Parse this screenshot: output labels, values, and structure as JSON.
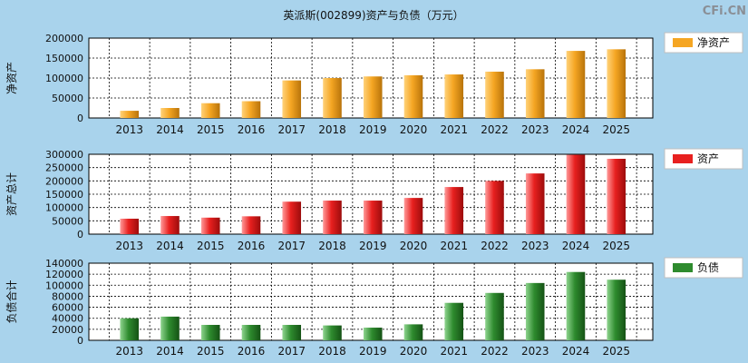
{
  "title": "英派斯(002899)资产与负债（万元）",
  "watermark": "CFi.CN",
  "chart_data": [
    {
      "type": "bar",
      "ylabel": "净资产",
      "legend": "净资产",
      "color": "#f5a623",
      "categories": [
        "2013",
        "2014",
        "2015",
        "2016",
        "2017",
        "2018",
        "2019",
        "2020",
        "2021",
        "2022",
        "2023",
        "2024",
        "2025"
      ],
      "values": [
        18000,
        25000,
        37000,
        42000,
        94000,
        100000,
        104000,
        107000,
        109000,
        116000,
        122000,
        168000,
        172000
      ],
      "ylim": [
        0,
        200000
      ],
      "yticks": [
        0,
        50000,
        100000,
        150000,
        200000
      ],
      "grid": true
    },
    {
      "type": "bar",
      "ylabel": "资产总计",
      "legend": "资产",
      "color": "#e8201f",
      "categories": [
        "2013",
        "2014",
        "2015",
        "2016",
        "2017",
        "2018",
        "2019",
        "2020",
        "2021",
        "2022",
        "2023",
        "2024",
        "2025"
      ],
      "values": [
        58000,
        68000,
        62000,
        67000,
        122000,
        126000,
        126000,
        136000,
        177000,
        200000,
        228000,
        298000,
        283000
      ],
      "ylim": [
        0,
        300000
      ],
      "yticks": [
        0,
        50000,
        100000,
        150000,
        200000,
        250000,
        300000
      ],
      "grid": true
    },
    {
      "type": "bar",
      "ylabel": "负债合计",
      "legend": "负债",
      "color": "#2e8b2e",
      "categories": [
        "2013",
        "2014",
        "2015",
        "2016",
        "2017",
        "2018",
        "2019",
        "2020",
        "2021",
        "2022",
        "2023",
        "2024",
        "2025"
      ],
      "values": [
        40000,
        43000,
        28000,
        28000,
        28000,
        27000,
        23000,
        29000,
        68000,
        86000,
        104000,
        124000,
        110000
      ],
      "ylim": [
        0,
        140000
      ],
      "yticks": [
        0,
        20000,
        40000,
        60000,
        80000,
        100000,
        120000,
        140000
      ],
      "grid": true
    }
  ]
}
